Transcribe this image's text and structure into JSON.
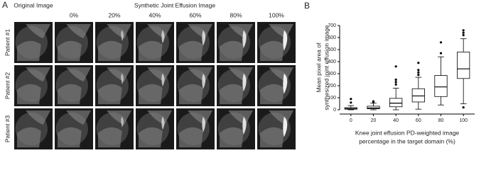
{
  "panel_a": {
    "label": "A",
    "original_header": "Original Image",
    "synthetic_header": "Synthetic Joint Effusion Image",
    "columns": [
      "0%",
      "20%",
      "40%",
      "60%",
      "80%",
      "100%"
    ],
    "rows": [
      "Patient #1",
      "Patient #2",
      "Patient #3"
    ]
  },
  "chart_data": {
    "type": "box",
    "panel_label": "B",
    "ylabel": [
      "Mean pixel area of",
      "synthesized joint effusion image"
    ],
    "xlabel": [
      "Knee joint effusion PD-weighted image",
      "percentage in the target domain (%)"
    ],
    "categories": [
      "0",
      "20",
      "40",
      "60",
      "80",
      "100"
    ],
    "boxes": [
      {
        "min": 0,
        "q1": 5,
        "median": 10,
        "q3": 18,
        "max": 35,
        "outliers": [
          60,
          90
        ]
      },
      {
        "min": 0,
        "q1": 8,
        "median": 15,
        "q3": 30,
        "max": 55,
        "outliers": [
          65,
          70
        ]
      },
      {
        "min": 0,
        "q1": 25,
        "median": 55,
        "q3": 95,
        "max": 180,
        "outliers": [
          210,
          230,
          250,
          360
        ]
      },
      {
        "min": 5,
        "q1": 65,
        "median": 115,
        "q3": 175,
        "max": 270,
        "outliers": [
          290,
          310,
          330,
          390
        ]
      },
      {
        "min": 40,
        "q1": 110,
        "median": 190,
        "q3": 285,
        "max": 440,
        "outliers": [
          470,
          560
        ]
      },
      {
        "min": 50,
        "q1": 260,
        "median": 340,
        "q3": 480,
        "max": 590,
        "outliers": [
          20,
          620,
          640,
          660
        ]
      }
    ],
    "color": "#000000",
    "ylim": [
      0,
      700
    ],
    "yticks": [
      0,
      100,
      200,
      300,
      400,
      500,
      600,
      700
    ]
  }
}
